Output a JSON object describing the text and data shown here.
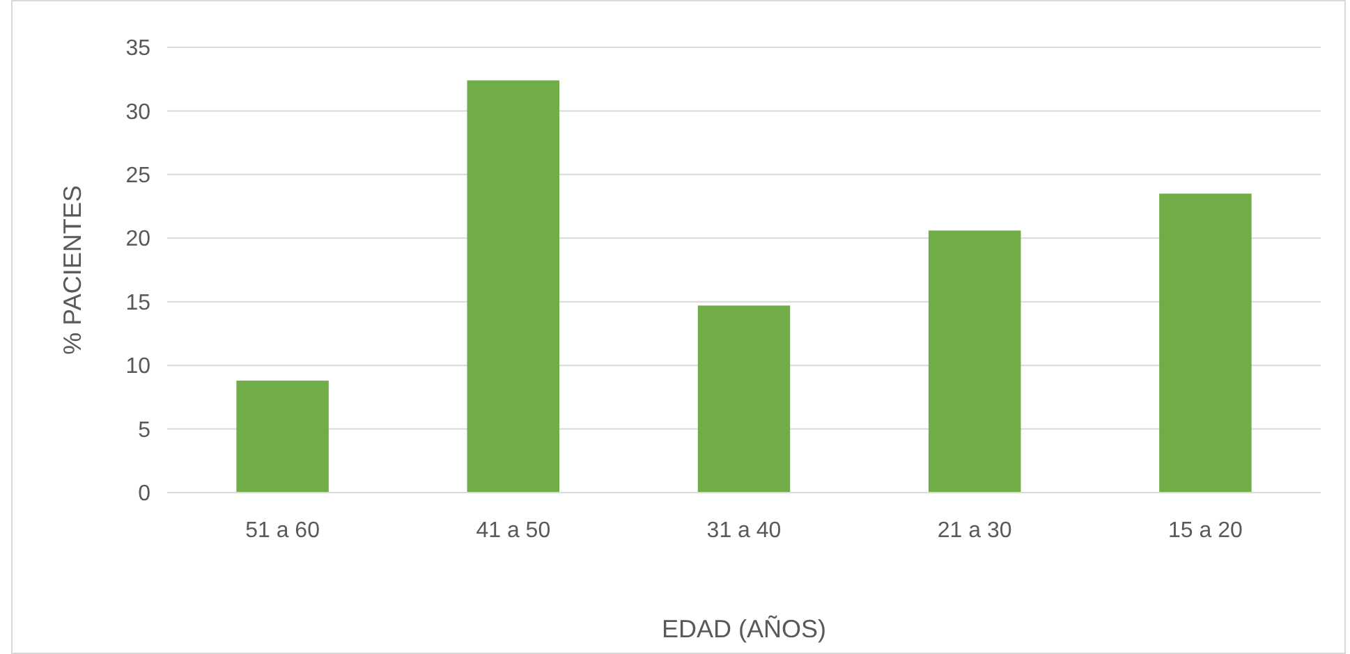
{
  "chart_data": {
    "type": "bar",
    "xlabel": "EDAD (AÑOS)",
    "ylabel": "% PACIENTES",
    "categories": [
      "51 a 60",
      "41 a 50",
      "31 a 40",
      "21 a 30",
      "15 a 20"
    ],
    "values": [
      8.8,
      32.4,
      14.7,
      20.6,
      23.5
    ],
    "color": "#70ad47",
    "ylim": [
      0,
      35
    ],
    "yticks": [
      0,
      5,
      10,
      15,
      20,
      25,
      30,
      35
    ],
    "grid": "y"
  }
}
